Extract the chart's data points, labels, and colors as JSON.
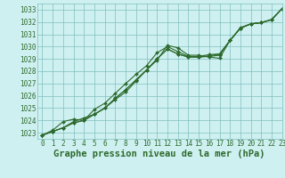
{
  "title": "Graphe pression niveau de la mer (hPa)",
  "bg_color": "#cff0f0",
  "grid_color": "#7fbfbf",
  "line_color": "#2d6a2d",
  "xlim": [
    -0.5,
    23
  ],
  "ylim": [
    1022.5,
    1033.5
  ],
  "yticks": [
    1023,
    1024,
    1025,
    1026,
    1027,
    1028,
    1029,
    1030,
    1031,
    1032,
    1033
  ],
  "xticks": [
    0,
    1,
    2,
    3,
    4,
    5,
    6,
    7,
    8,
    9,
    10,
    11,
    12,
    13,
    14,
    15,
    16,
    17,
    18,
    19,
    20,
    21,
    22,
    23
  ],
  "series": [
    [
      1022.8,
      1023.1,
      1023.4,
      1023.9,
      1024.2,
      1024.5,
      1025.0,
      1025.7,
      1026.3,
      1027.2,
      1028.1,
      1028.9,
      1030.1,
      1029.9,
      1029.3,
      1029.3,
      1029.15,
      1029.05,
      1030.5,
      1031.5,
      1031.85,
      1031.95,
      1032.2,
      1033.1
    ],
    [
      1022.8,
      1023.1,
      1023.4,
      1023.8,
      1024.0,
      1024.5,
      1025.0,
      1025.8,
      1026.5,
      1027.3,
      1028.1,
      1029.0,
      1029.8,
      1029.4,
      1029.15,
      1029.15,
      1029.2,
      1029.3,
      1030.5,
      1031.5,
      1031.85,
      1031.95,
      1032.2,
      1033.1
    ],
    [
      1022.8,
      1023.1,
      1023.4,
      1023.8,
      1024.0,
      1024.5,
      1025.0,
      1025.8,
      1026.5,
      1027.3,
      1028.1,
      1029.0,
      1029.8,
      1029.4,
      1029.15,
      1029.15,
      1029.25,
      1029.4,
      1030.5,
      1031.5,
      1031.85,
      1031.95,
      1032.2,
      1033.1
    ],
    [
      1022.8,
      1023.2,
      1023.9,
      1024.1,
      1024.0,
      1024.9,
      1025.4,
      1026.2,
      1027.0,
      1027.75,
      1028.45,
      1029.5,
      1030.0,
      1029.6,
      1029.2,
      1029.2,
      1029.35,
      1029.4,
      1030.5,
      1031.55,
      1031.85,
      1031.95,
      1032.2,
      1033.1
    ]
  ],
  "marker": "D",
  "markersize": 2.0,
  "linewidth": 0.8,
  "title_fontsize": 7.5,
  "tick_fontsize": 5.5
}
